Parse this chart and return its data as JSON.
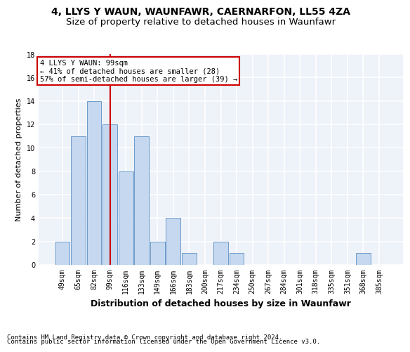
{
  "title1": "4, LLYS Y WAUN, WAUNFAWR, CAERNARFON, LL55 4ZA",
  "title2": "Size of property relative to detached houses in Waunfawr",
  "xlabel": "Distribution of detached houses by size in Waunfawr",
  "ylabel": "Number of detached properties",
  "categories": [
    "49sqm",
    "65sqm",
    "82sqm",
    "99sqm",
    "116sqm",
    "133sqm",
    "149sqm",
    "166sqm",
    "183sqm",
    "200sqm",
    "217sqm",
    "234sqm",
    "250sqm",
    "267sqm",
    "284sqm",
    "301sqm",
    "318sqm",
    "335sqm",
    "351sqm",
    "368sqm",
    "385sqm"
  ],
  "values": [
    2,
    11,
    14,
    12,
    8,
    11,
    2,
    4,
    1,
    0,
    2,
    1,
    0,
    0,
    0,
    0,
    0,
    0,
    0,
    1,
    0
  ],
  "bar_color": "#c5d8f0",
  "bar_edge_color": "#5a8fc4",
  "highlight_bar_index": 3,
  "highlight_line_color": "#cc0000",
  "annotation_line1": "4 LLYS Y WAUN: 99sqm",
  "annotation_line2": "← 41% of detached houses are smaller (28)",
  "annotation_line3": "57% of semi-detached houses are larger (39) →",
  "annotation_box_edge": "#cc0000",
  "ylim": [
    0,
    18
  ],
  "yticks": [
    0,
    2,
    4,
    6,
    8,
    10,
    12,
    14,
    16,
    18
  ],
  "footer_line1": "Contains HM Land Registry data © Crown copyright and database right 2024.",
  "footer_line2": "Contains public sector information licensed under the Open Government Licence v3.0.",
  "bg_color": "#eef2f9",
  "grid_color": "#ffffff",
  "title1_fontsize": 10,
  "title2_fontsize": 9.5,
  "xlabel_fontsize": 9,
  "ylabel_fontsize": 8,
  "tick_fontsize": 7,
  "footer_fontsize": 6.5,
  "annotation_fontsize": 7.5
}
